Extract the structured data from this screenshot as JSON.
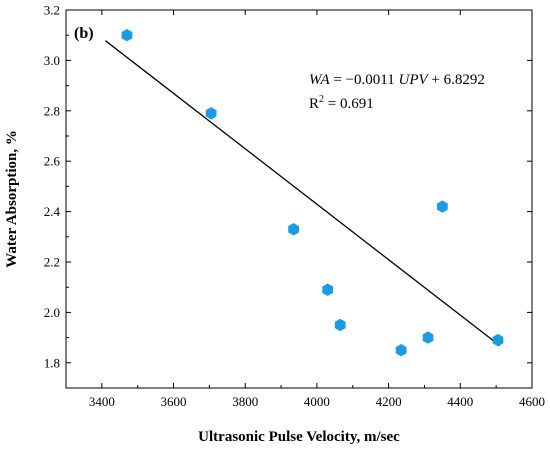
{
  "chart_data": {
    "type": "scatter",
    "panel_label": "(b)",
    "xlabel": "Ultrasonic Pulse Velocity, m/sec",
    "ylabel": "Water Absorption, %",
    "xlim": [
      3300,
      4600
    ],
    "ylim": [
      1.7,
      3.2
    ],
    "xticks": [
      3400,
      3600,
      3800,
      4000,
      4200,
      4400,
      4600
    ],
    "yticks": [
      1.8,
      2.0,
      2.2,
      2.4,
      2.6,
      2.8,
      3.0,
      3.2
    ],
    "marker_color": "#1a9be6",
    "points": [
      {
        "x": 3470,
        "y": 3.1
      },
      {
        "x": 3705,
        "y": 2.79
      },
      {
        "x": 3935,
        "y": 2.33
      },
      {
        "x": 4030,
        "y": 2.09
      },
      {
        "x": 4065,
        "y": 1.95
      },
      {
        "x": 4235,
        "y": 1.85
      },
      {
        "x": 4310,
        "y": 1.9
      },
      {
        "x": 4350,
        "y": 2.42
      },
      {
        "x": 4505,
        "y": 1.89
      }
    ],
    "fit_line": {
      "x_start": 3410,
      "x_end": 4510,
      "slope": -0.0011,
      "intercept": 6.8292
    },
    "equation": {
      "lhs": "WA",
      "equals_coef": " = −0.0011 ",
      "var": "UPV",
      "rest": " + 6.8292"
    },
    "r2": {
      "base": "R",
      "sup": "2",
      "value": " = 0.691"
    }
  }
}
